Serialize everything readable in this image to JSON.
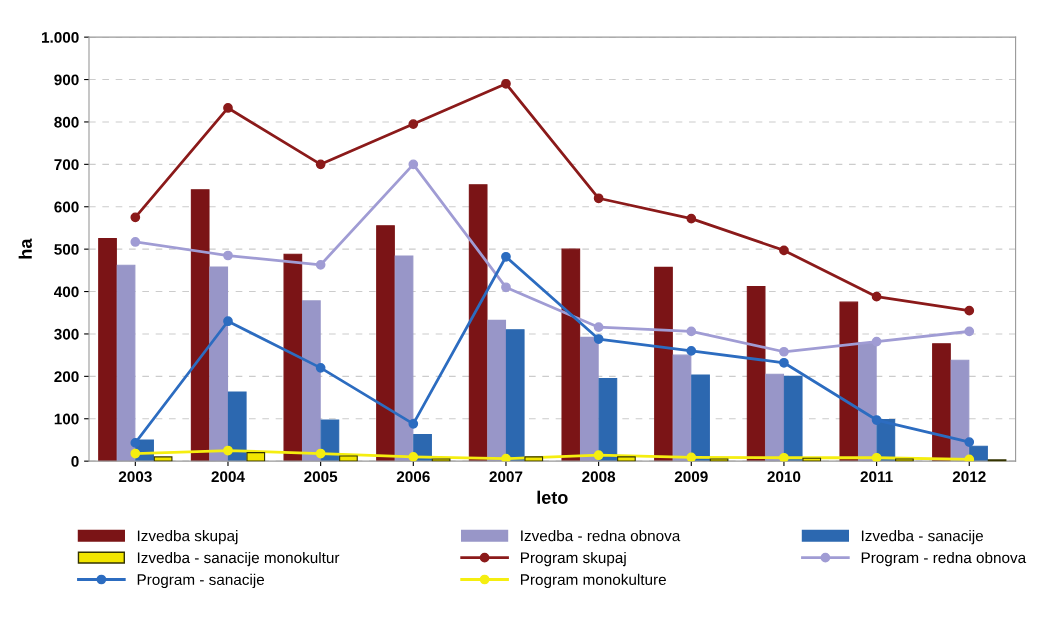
{
  "chart_data": {
    "type": "bar",
    "xlabel": "leto",
    "ylabel": "ha",
    "categories": [
      "2003",
      "2004",
      "2005",
      "2006",
      "2007",
      "2008",
      "2009",
      "2010",
      "2011",
      "2012"
    ],
    "series": [
      {
        "name": "Izvedba skupaj",
        "color": "#7b1416",
        "values": [
          525,
          640,
          488,
          555,
          652,
          500,
          457,
          412,
          375,
          277
        ]
      },
      {
        "name": "Izvedba - redna obnova",
        "color": "#9896c8",
        "values": [
          462,
          458,
          378,
          484,
          332,
          292,
          250,
          205,
          280,
          238
        ]
      },
      {
        "name": "Izvedba - sanacije",
        "color": "#2c68b0",
        "values": [
          50,
          163,
          97,
          63,
          310,
          195,
          203,
          200,
          98,
          35
        ]
      },
      {
        "name": "Izvedba - sanacije monokultur",
        "color": "#f2e600",
        "values": [
          10,
          20,
          12,
          5,
          10,
          10,
          5,
          7,
          5,
          3
        ]
      },
      {
        "name": "Program skupaj",
        "type": "line",
        "marker": "circle",
        "color": "#8b1a1a",
        "values": [
          575,
          833,
          700,
          795,
          890,
          620,
          572,
          497,
          388,
          355
        ]
      },
      {
        "name": "Program - redna obnova",
        "type": "line",
        "marker": "circle",
        "color": "#a09cd4",
        "values": [
          517,
          485,
          463,
          700,
          410,
          316,
          306,
          258,
          282,
          306
        ]
      },
      {
        "name": "Program - sanacije",
        "type": "line",
        "marker": "circle",
        "color": "#2c6cc0",
        "values": [
          43,
          330,
          220,
          88,
          482,
          288,
          260,
          232,
          97,
          45
        ]
      },
      {
        "name": "Program monokulture",
        "type": "line",
        "marker": "circle",
        "color": "#f5ee10",
        "values": [
          18,
          25,
          18,
          10,
          6,
          14,
          9,
          8,
          8,
          4
        ]
      }
    ],
    "ylim": [
      0,
      1000
    ],
    "yticks": [
      0,
      100,
      200,
      300,
      400,
      500,
      600,
      700,
      800,
      900,
      {
        "value": 1000,
        "label": "1.000"
      }
    ],
    "grid": "y",
    "legend": "bottom"
  }
}
